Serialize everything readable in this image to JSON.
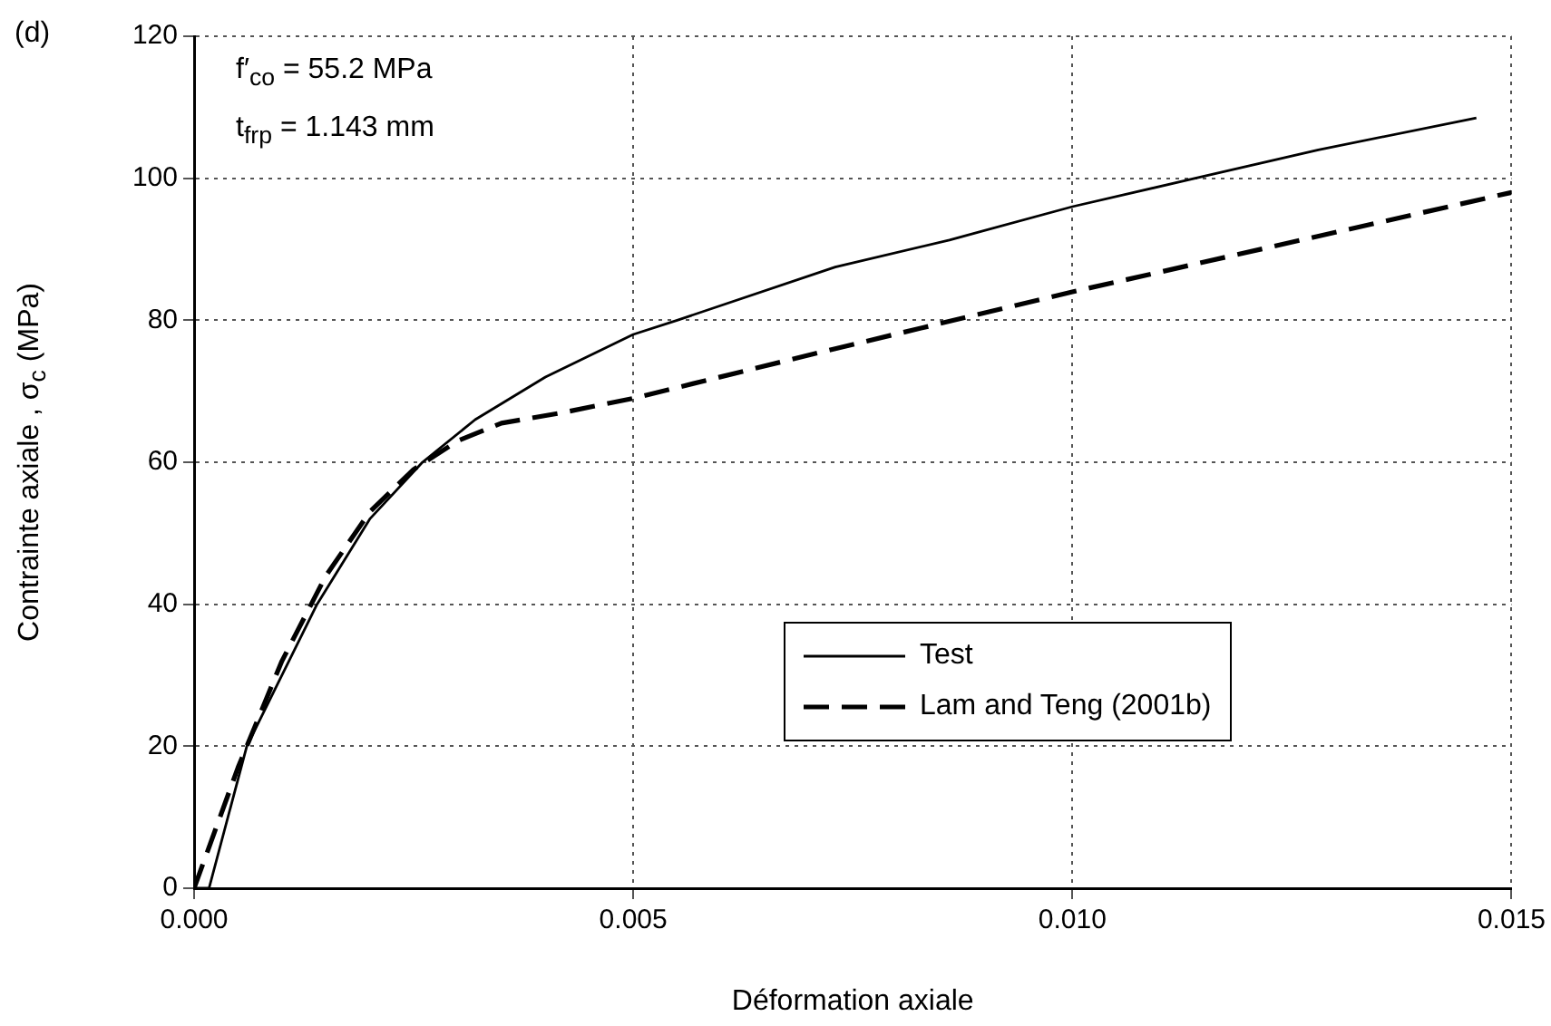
{
  "chart_data": {
    "type": "line",
    "xlabel": "Déformation axiale",
    "ylabel": "Contrainte axiale , σ$_{c}$ (MPa)",
    "annotations": [
      "(d)",
      "f′$_{co}$ = 55.2 MPa",
      "t$_{frp}$ = 1.143 mm"
    ],
    "xlim": [
      0,
      0.015
    ],
    "xticks": [
      {
        "value": 0,
        "label": "0.000"
      },
      {
        "value": 0.005,
        "label": "0.005"
      },
      {
        "value": 0.01,
        "label": "0.010"
      },
      {
        "value": 0.015,
        "label": "0.015"
      }
    ],
    "ylim": [
      0,
      120
    ],
    "yticks": [
      0,
      20,
      40,
      60,
      80,
      100,
      120
    ],
    "grid": true,
    "legend": "bottom right",
    "marker": "none",
    "series": [
      {
        "name": "Test",
        "color": "#000000",
        "line_style": "solid",
        "x": [
          0,
          0.00017,
          0.0006,
          0.0014,
          0.002,
          0.0026,
          0.0032,
          0.004,
          0.005,
          0.0055,
          0.0073,
          0.0086,
          0.01,
          0.0114,
          0.0128,
          0.0146
        ],
        "values": [
          0,
          0,
          20,
          40,
          52,
          60,
          66,
          72,
          78,
          80,
          87.5,
          91.3,
          96,
          100,
          104,
          108.5
        ]
      },
      {
        "name": "Lam and Teng (2001b)",
        "color": "#000000",
        "line_style": "dashed",
        "x": [
          0,
          0.0005,
          0.001,
          0.0015,
          0.002,
          0.0025,
          0.003,
          0.0035,
          0.0042,
          0.005,
          0.0073,
          0.01,
          0.015
        ],
        "values": [
          0,
          17,
          32,
          44,
          53,
          59,
          63,
          65.5,
          67,
          69,
          76,
          84,
          98
        ]
      }
    ]
  }
}
